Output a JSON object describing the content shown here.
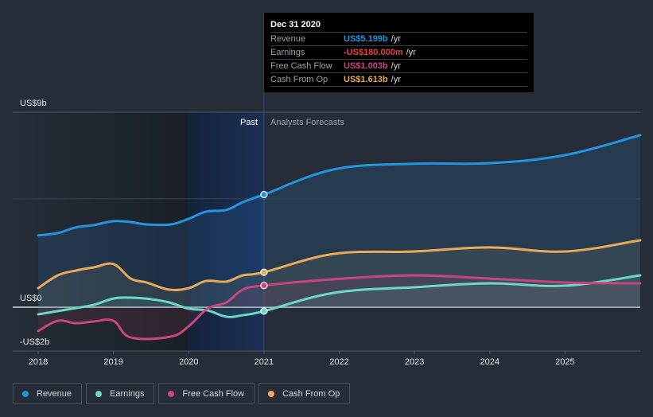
{
  "chart_data": {
    "type": "line",
    "title": "",
    "xlabel": "",
    "ylabel": "",
    "x_ticks": [
      "2018",
      "2019",
      "2020",
      "2021",
      "2022",
      "2023",
      "2024",
      "2025"
    ],
    "x_range": [
      2018,
      2026
    ],
    "y_ticks": [
      {
        "value": 9,
        "label": "US$9b"
      },
      {
        "value": 0,
        "label": "US$0"
      },
      {
        "value": -2,
        "label": "-US$2b"
      }
    ],
    "gridlines_at": [
      9,
      5,
      0
    ],
    "ylim": [
      -2,
      9
    ],
    "units": "US$ billions",
    "past_label": "Past",
    "forecast_label": "Analysts Forecasts",
    "past_highlight_range": [
      2020,
      2021
    ],
    "forecast_start": 2021,
    "legend_placement": "bottom-left",
    "series": [
      {
        "name": "Revenue",
        "color": "#2394df",
        "x": [
          2018.0,
          2018.26,
          2018.5,
          2018.74,
          2019.0,
          2019.23,
          2019.44,
          2019.76,
          2020.0,
          2020.23,
          2020.5,
          2020.72,
          2021.0,
          2021.93,
          2022.99,
          2024.0,
          2025.0,
          2026.0
        ],
        "values": [
          3.31,
          3.42,
          3.68,
          3.79,
          3.97,
          3.93,
          3.82,
          3.82,
          4.08,
          4.41,
          4.49,
          4.85,
          5.199,
          6.36,
          6.62,
          6.65,
          7.02,
          7.94
        ]
      },
      {
        "name": "Earnings",
        "color": "#6ad8c6",
        "x": [
          2018.0,
          2018.5,
          2018.74,
          2019.0,
          2019.23,
          2019.5,
          2019.74,
          2020.0,
          2020.25,
          2020.5,
          2020.72,
          2021.0,
          2021.93,
          2022.99,
          2024.0,
          2025.0,
          2026.0
        ],
        "values": [
          -0.33,
          -0.04,
          0.11,
          0.4,
          0.44,
          0.37,
          0.22,
          -0.07,
          -0.15,
          -0.44,
          -0.37,
          -0.18,
          0.66,
          0.92,
          1.1,
          0.99,
          1.47
        ]
      },
      {
        "name": "Free Cash Flow",
        "color": "#c9457f",
        "x": [
          2018.0,
          2018.26,
          2018.5,
          2018.74,
          2019.0,
          2019.23,
          2019.76,
          2020.0,
          2020.25,
          2020.5,
          2020.72,
          2021.0,
          2021.93,
          2022.99,
          2024.0,
          2025.0,
          2026.0
        ],
        "values": [
          -1.1,
          -0.63,
          -0.74,
          -0.66,
          -0.63,
          -1.4,
          -1.36,
          -0.88,
          -0.07,
          0.22,
          0.81,
          1.003,
          1.29,
          1.47,
          1.32,
          1.14,
          1.1
        ]
      },
      {
        "name": "Cash From Op",
        "color": "#e8aa57",
        "x": [
          2018.0,
          2018.26,
          2018.5,
          2018.74,
          2019.0,
          2019.23,
          2019.44,
          2019.74,
          2020.0,
          2020.23,
          2020.5,
          2020.72,
          2021.0,
          2021.93,
          2022.99,
          2024.0,
          2025.0,
          2026.0
        ],
        "values": [
          0.88,
          1.47,
          1.69,
          1.84,
          1.99,
          1.32,
          1.14,
          0.81,
          0.88,
          1.21,
          1.18,
          1.47,
          1.613,
          2.46,
          2.57,
          2.76,
          2.57,
          3.09
        ]
      }
    ],
    "highlight_x": 2021.0
  },
  "tooltip": {
    "date": "Dec 31 2020",
    "rows": [
      {
        "label": "Revenue",
        "value": "US$5.199b",
        "unit": "/yr",
        "color": "#2394df"
      },
      {
        "label": "Earnings",
        "value": "-US$180.000m",
        "unit": "/yr",
        "color": "#e8433f"
      },
      {
        "label": "Free Cash Flow",
        "value": "US$1.003b",
        "unit": "/yr",
        "color": "#c9457f"
      },
      {
        "label": "Cash From Op",
        "value": "US$1.613b",
        "unit": "/yr",
        "color": "#e8aa57"
      }
    ]
  },
  "legend": [
    {
      "label": "Revenue",
      "color": "#2394df"
    },
    {
      "label": "Earnings",
      "color": "#6ad8c6"
    },
    {
      "label": "Free Cash Flow",
      "color": "#c9457f"
    },
    {
      "label": "Cash From Op",
      "color": "#e8aa57"
    }
  ]
}
